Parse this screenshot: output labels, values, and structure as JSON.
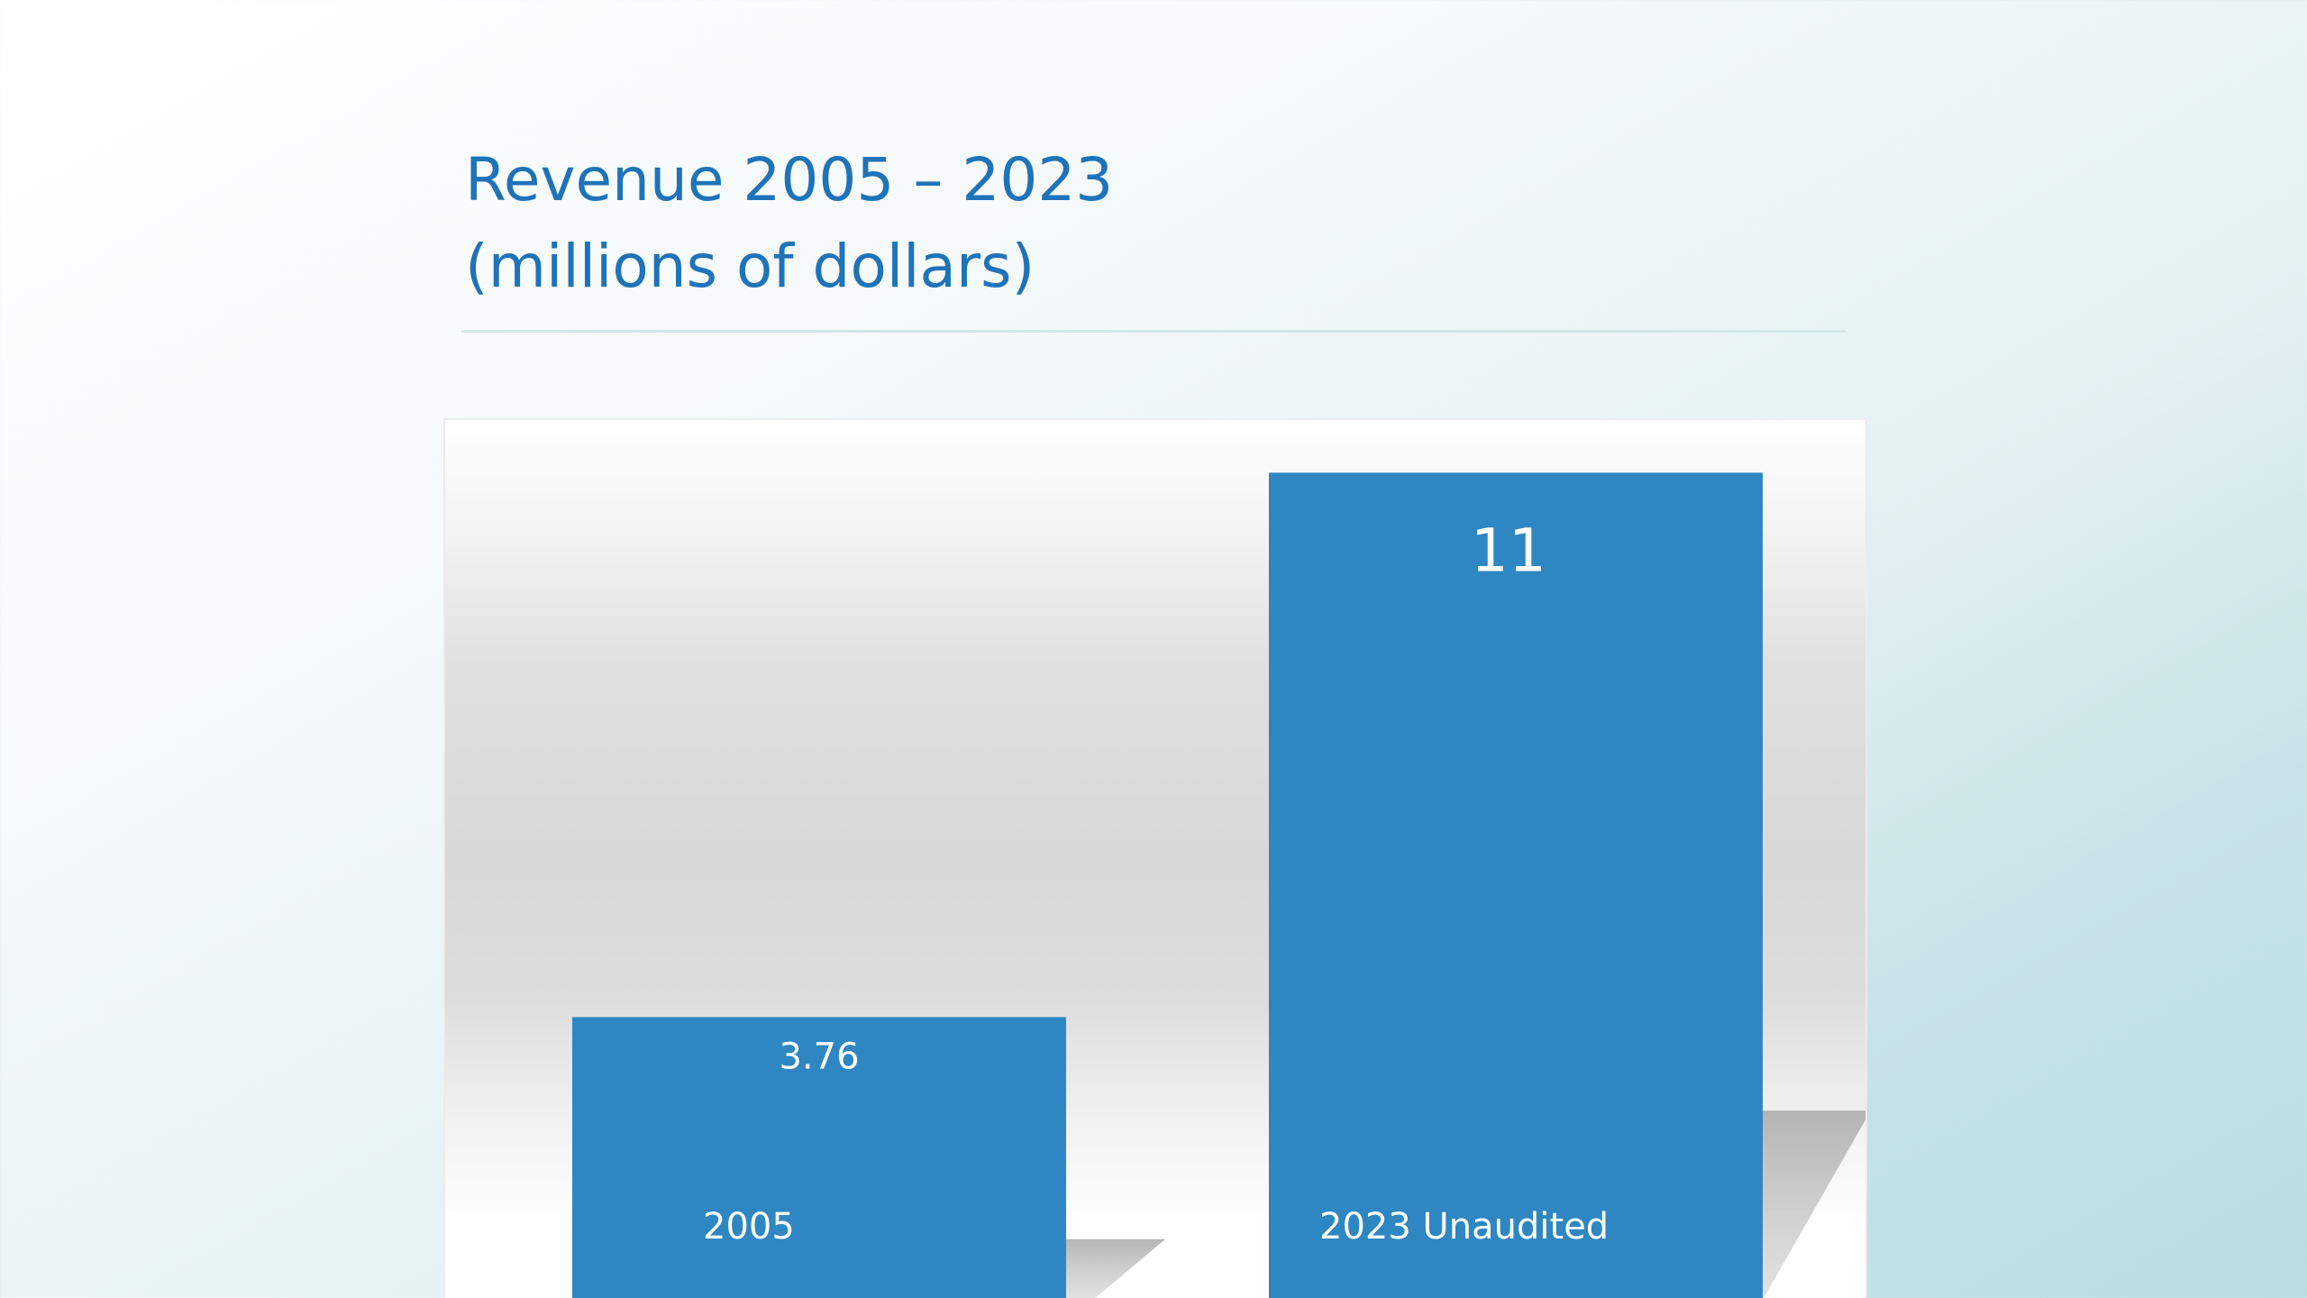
{
  "slide": {
    "title": "Revenue 2005 – 2023",
    "subtitle": "(millions of dollars)"
  },
  "colors": {
    "title": "#1f73b8",
    "bar": "#2e87c2",
    "bar_label": "#ffffff",
    "shadow": "#bdbdbd"
  },
  "chart_data": {
    "type": "bar",
    "categories": [
      "2005",
      "2023 Unaudited"
    ],
    "values": [
      3.76,
      11
    ],
    "value_labels": [
      "3.76",
      "11"
    ],
    "title": "",
    "xlabel": "",
    "ylabel": "",
    "ylim": [
      0,
      11.7
    ],
    "grid": false,
    "legend": "none"
  }
}
